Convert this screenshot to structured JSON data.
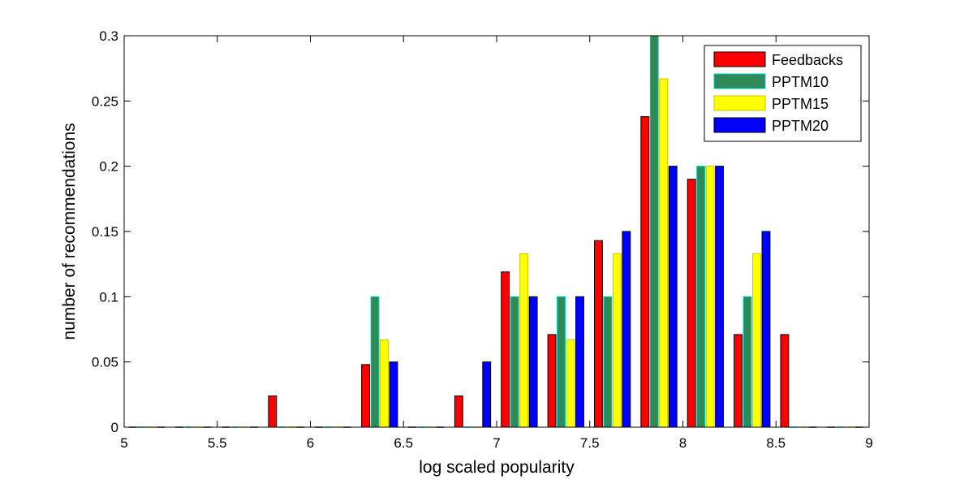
{
  "chart_data": {
    "type": "bar",
    "xlabel": "log scaled popularity",
    "ylabel": "number of recommendations",
    "xlim": [
      5,
      9
    ],
    "ylim": [
      0,
      0.3
    ],
    "xticks": [
      5,
      5.5,
      6,
      6.5,
      7,
      7.5,
      8,
      8.5,
      9
    ],
    "xtick_labels": [
      "5",
      "5.5",
      "6",
      "6.5",
      "7",
      "7.5",
      "8",
      "8.5",
      "9"
    ],
    "yticks": [
      0,
      0.05,
      0.1,
      0.15,
      0.2,
      0.25,
      0.3
    ],
    "ytick_labels": [
      "0",
      "0.05",
      "0.1",
      "0.15",
      "0.2",
      "0.25",
      "0.3"
    ],
    "grid": false,
    "legend_position": "top-right",
    "bin_centers": [
      5.125,
      5.375,
      5.625,
      5.875,
      6.125,
      6.375,
      6.625,
      6.875,
      7.125,
      7.375,
      7.625,
      7.875,
      8.125,
      8.375,
      8.625,
      8.875
    ],
    "series": [
      {
        "name": "Feedbacks",
        "color": "#ff0000",
        "edge": "#000000",
        "values": [
          0,
          0,
          0,
          0.024,
          0,
          0.048,
          0,
          0.024,
          0.119,
          0.071,
          0.143,
          0.238,
          0.19,
          0.071,
          0.071,
          0
        ]
      },
      {
        "name": "PPTM10",
        "color": "#2e8b57",
        "edge": "#00cccc",
        "values": [
          0,
          0,
          0,
          0,
          0,
          0.1,
          0,
          0,
          0.1,
          0.1,
          0.1,
          0.3,
          0.2,
          0.1,
          0,
          0
        ]
      },
      {
        "name": "PPTM15",
        "color": "#ffff00",
        "edge": "#c8c800",
        "values": [
          0,
          0,
          0,
          0,
          0,
          0.067,
          0,
          0,
          0.133,
          0.067,
          0.133,
          0.267,
          0.2,
          0.133,
          0,
          0
        ]
      },
      {
        "name": "PPTM20",
        "color": "#0000ff",
        "edge": "#000000",
        "values": [
          0,
          0,
          0,
          0,
          0,
          0.05,
          0,
          0.05,
          0.1,
          0.1,
          0.15,
          0.2,
          0.2,
          0.15,
          0,
          0
        ]
      }
    ]
  }
}
